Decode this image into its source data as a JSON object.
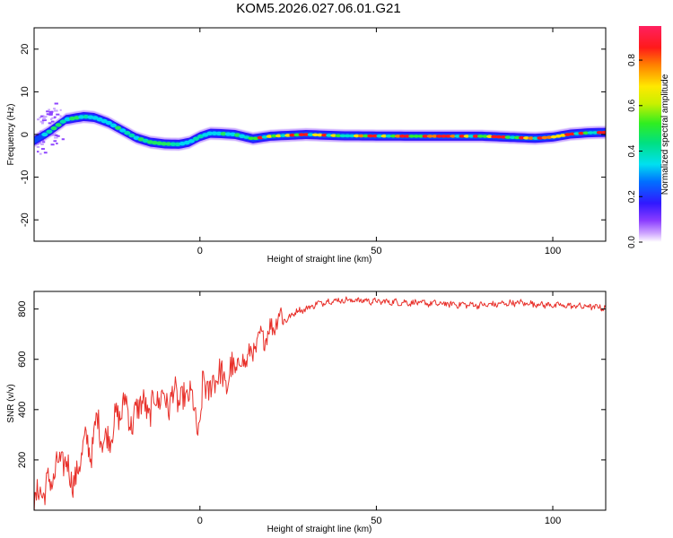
{
  "title": "KOM5.2026.027.06.01.G21",
  "colors": {
    "snr_line": "#e8302a",
    "axis": "#000000",
    "background": "#ffffff"
  },
  "chart_data": [
    {
      "type": "heatmap",
      "name": "spectrogram",
      "xlabel": "Height of straight line (km)",
      "ylabel": "Frequency (Hz)",
      "xlim": [
        -47,
        115
      ],
      "ylim": [
        -25,
        25
      ],
      "xticks": [
        0,
        50,
        100
      ],
      "yticks": [
        -20,
        -10,
        0,
        10,
        20
      ],
      "ridge_frequency": {
        "x": [
          -47,
          -43,
          -38,
          -33,
          -30,
          -26,
          -22,
          -18,
          -14,
          -10,
          -6,
          -3,
          0,
          3,
          6,
          10,
          15,
          20,
          30,
          40,
          60,
          80,
          95,
          100,
          105,
          110,
          115
        ],
        "y": [
          -1.5,
          0.5,
          3.5,
          4.2,
          4.0,
          2.8,
          1.0,
          -0.8,
          -1.8,
          -2.2,
          -2.3,
          -1.8,
          -0.5,
          0.3,
          0.2,
          0.0,
          -1.0,
          -0.4,
          0.0,
          -0.3,
          -0.4,
          -0.4,
          -0.9,
          -0.6,
          0.1,
          0.4,
          0.5
        ]
      },
      "colorbar": {
        "label": "Normalized spectral amplitude",
        "range": [
          0,
          0.95
        ],
        "ticks": [
          "0.0",
          "0.2",
          "0.4",
          "0.6",
          "0.8"
        ]
      }
    },
    {
      "type": "line",
      "name": "snr",
      "xlabel": "Height of straight line (km)",
      "ylabel": "SNR (v/v)",
      "xlim": [
        -47,
        115
      ],
      "ylim": [
        0,
        870
      ],
      "xticks": [
        0,
        50,
        100
      ],
      "yticks": [
        200,
        400,
        600,
        800
      ],
      "series": [
        {
          "name": "SNR",
          "x": [
            -47,
            -45,
            -43,
            -41,
            -39,
            -37,
            -35,
            -33,
            -31,
            -29,
            -27,
            -25,
            -23,
            -21,
            -19,
            -17,
            -15,
            -13,
            -11,
            -9,
            -7,
            -5,
            -3,
            -1,
            0,
            1,
            3,
            5,
            7,
            9,
            11,
            13,
            15,
            17,
            19,
            21,
            23,
            25,
            27,
            30,
            33,
            36,
            40,
            45,
            50,
            60,
            70,
            80,
            90,
            100,
            110,
            115
          ],
          "y": [
            40,
            70,
            100,
            150,
            210,
            150,
            110,
            280,
            230,
            360,
            260,
            320,
            380,
            430,
            330,
            450,
            380,
            430,
            460,
            420,
            470,
            420,
            480,
            350,
            310,
            520,
            470,
            560,
            500,
            550,
            580,
            600,
            630,
            680,
            700,
            740,
            780,
            760,
            790,
            800,
            820,
            830,
            835,
            835,
            830,
            825,
            820,
            815,
            825,
            815,
            810,
            805
          ]
        }
      ]
    }
  ]
}
